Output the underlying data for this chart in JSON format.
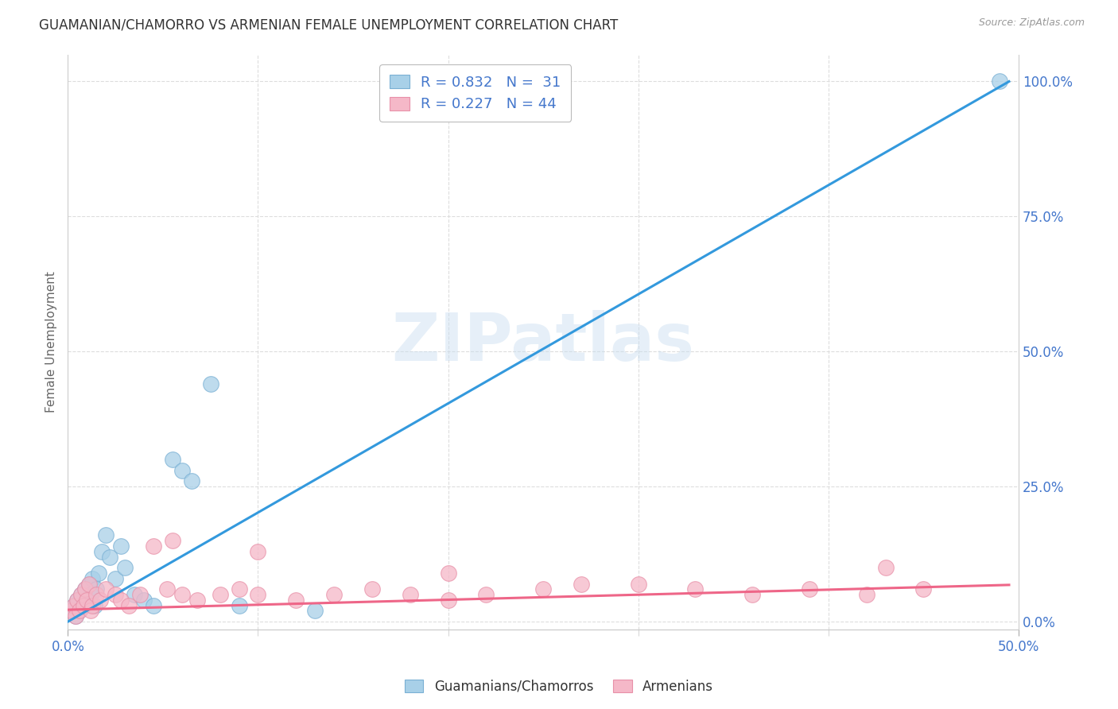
{
  "title": "GUAMANIAN/CHAMORRO VS ARMENIAN FEMALE UNEMPLOYMENT CORRELATION CHART",
  "source": "Source: ZipAtlas.com",
  "ylabel": "Female Unemployment",
  "xlim": [
    0.0,
    0.5
  ],
  "ylim": [
    0.0,
    1.05
  ],
  "xticks": [
    0.0,
    0.5
  ],
  "xticklabels": [
    "0.0%",
    "50.0%"
  ],
  "ytick_vals": [
    0.0,
    0.25,
    0.5,
    0.75,
    1.0
  ],
  "yticklabels_right": [
    "0.0%",
    "25.0%",
    "50.0%",
    "75.0%",
    "100.0%"
  ],
  "watermark": "ZIPatlas",
  "blue_scatter_color": "#a8d0e8",
  "blue_scatter_edge": "#7ab0d4",
  "pink_scatter_color": "#f5b8c8",
  "pink_scatter_edge": "#e890a8",
  "blue_line_color": "#3399dd",
  "pink_line_color": "#ee6688",
  "tick_label_color": "#4477cc",
  "title_color": "#333333",
  "source_color": "#999999",
  "ylabel_color": "#666666",
  "grid_color": "#dddddd",
  "legend_text_color": "#4477cc",
  "guam_x": [
    0.002,
    0.003,
    0.004,
    0.005,
    0.006,
    0.007,
    0.008,
    0.009,
    0.01,
    0.011,
    0.012,
    0.013,
    0.014,
    0.015,
    0.016,
    0.018,
    0.02,
    0.022,
    0.025,
    0.028,
    0.03,
    0.035,
    0.04,
    0.045,
    0.055,
    0.06,
    0.065,
    0.075,
    0.09,
    0.13,
    0.49
  ],
  "guam_y": [
    0.02,
    0.03,
    0.01,
    0.04,
    0.02,
    0.05,
    0.03,
    0.06,
    0.04,
    0.07,
    0.05,
    0.08,
    0.03,
    0.06,
    0.09,
    0.13,
    0.16,
    0.12,
    0.08,
    0.14,
    0.1,
    0.05,
    0.04,
    0.03,
    0.3,
    0.28,
    0.26,
    0.44,
    0.03,
    0.02,
    1.0
  ],
  "arm_x": [
    0.002,
    0.003,
    0.004,
    0.005,
    0.006,
    0.007,
    0.008,
    0.009,
    0.01,
    0.011,
    0.012,
    0.013,
    0.015,
    0.017,
    0.02,
    0.025,
    0.028,
    0.032,
    0.038,
    0.045,
    0.052,
    0.06,
    0.068,
    0.08,
    0.09,
    0.1,
    0.12,
    0.14,
    0.16,
    0.18,
    0.2,
    0.22,
    0.25,
    0.27,
    0.3,
    0.33,
    0.36,
    0.39,
    0.42,
    0.45,
    0.055,
    0.1,
    0.2,
    0.43
  ],
  "arm_y": [
    0.02,
    0.03,
    0.01,
    0.04,
    0.02,
    0.05,
    0.03,
    0.06,
    0.04,
    0.07,
    0.02,
    0.03,
    0.05,
    0.04,
    0.06,
    0.05,
    0.04,
    0.03,
    0.05,
    0.14,
    0.06,
    0.05,
    0.04,
    0.05,
    0.06,
    0.05,
    0.04,
    0.05,
    0.06,
    0.05,
    0.04,
    0.05,
    0.06,
    0.07,
    0.07,
    0.06,
    0.05,
    0.06,
    0.05,
    0.06,
    0.15,
    0.13,
    0.09,
    0.1
  ],
  "blue_line_x": [
    0.0,
    0.495
  ],
  "blue_line_y": [
    0.0,
    1.0
  ],
  "pink_line_x": [
    0.0,
    0.495
  ],
  "pink_line_y": [
    0.022,
    0.068
  ]
}
